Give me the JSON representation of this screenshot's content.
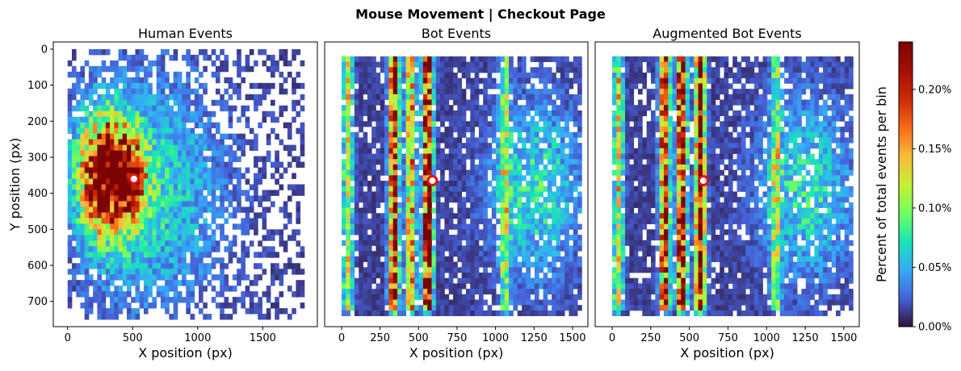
{
  "chart_data": {
    "type": "heatmap",
    "title": "Mouse Movement | Checkout Page",
    "panels": [
      {
        "title": "Human Events",
        "xlabel": "X position (px)",
        "ylabel": "Y position (px)",
        "xticks": [
          0,
          500,
          1000,
          1500
        ],
        "xlim": [
          -110,
          1920
        ],
        "yticks": [
          0,
          100,
          200,
          300,
          400,
          500,
          600,
          700
        ],
        "ylim": [
          -20,
          770
        ],
        "extent": {
          "x": [
            0,
            1820
          ],
          "y": [
            0,
            750
          ]
        },
        "bins": [
          56,
          48
        ],
        "marker": {
          "x": 510,
          "y": 360
        },
        "hotspots": [
          {
            "x": 300,
            "y": 350,
            "sx": 140,
            "sy": 110,
            "w": 1.0
          },
          {
            "x": 480,
            "y": 355,
            "sx": 90,
            "sy": 70,
            "w": 0.55
          },
          {
            "x": 650,
            "y": 400,
            "sx": 380,
            "sy": 220,
            "w": 0.22
          }
        ],
        "vbands": []
      },
      {
        "title": "Bot Events",
        "xlabel": "X position (px)",
        "xticks": [
          0,
          250,
          500,
          750,
          1000,
          1250,
          1500
        ],
        "xlim": [
          -110,
          1600
        ],
        "yticks": [
          0,
          100,
          200,
          300,
          400,
          500,
          600,
          700
        ],
        "ylim": [
          -20,
          770
        ],
        "extent": {
          "x": [
            0,
            1560
          ],
          "y": [
            20,
            740
          ]
        },
        "bins": [
          56,
          48
        ],
        "marker": {
          "x": 590,
          "y": 365
        },
        "hotspots": [
          {
            "x": 1260,
            "y": 390,
            "sx": 200,
            "sy": 160,
            "w": 0.25
          }
        ],
        "vbands": [
          {
            "x": 40,
            "w": 0.45
          },
          {
            "x": 340,
            "w": 0.85
          },
          {
            "x": 450,
            "w": 0.6
          },
          {
            "x": 560,
            "w": 1.0
          },
          {
            "x": 1060,
            "w": 0.35
          }
        ]
      },
      {
        "title": "Augmented Bot Events",
        "xlabel": "X position (px)",
        "xticks": [
          0,
          250,
          500,
          750,
          1000,
          1250,
          1500
        ],
        "xlim": [
          -110,
          1600
        ],
        "yticks": [
          0,
          100,
          200,
          300,
          400,
          500,
          600,
          700
        ],
        "ylim": [
          -20,
          770
        ],
        "extent": {
          "x": [
            0,
            1560
          ],
          "y": [
            20,
            740
          ]
        },
        "bins": [
          56,
          48
        ],
        "marker": {
          "x": 590,
          "y": 365
        },
        "hotspots": [
          {
            "x": 1260,
            "y": 390,
            "sx": 200,
            "sy": 160,
            "w": 0.25
          }
        ],
        "vbands": [
          {
            "x": 40,
            "w": 0.45
          },
          {
            "x": 340,
            "w": 0.85
          },
          {
            "x": 450,
            "w": 0.95
          },
          {
            "x": 570,
            "w": 0.9
          },
          {
            "x": 1060,
            "w": 0.35
          }
        ]
      }
    ],
    "colorbar": {
      "label": "Percent of total events per bin",
      "ticks": [
        "0.00%",
        "0.05%",
        "0.10%",
        "0.15%",
        "0.20%"
      ],
      "tick_values": [
        0.0,
        0.05,
        0.1,
        0.15,
        0.2
      ],
      "range": [
        0.0,
        0.24
      ],
      "colormap": "turbo"
    },
    "marker_style": {
      "fill": "#ffffff",
      "stroke": "#e01010"
    }
  }
}
